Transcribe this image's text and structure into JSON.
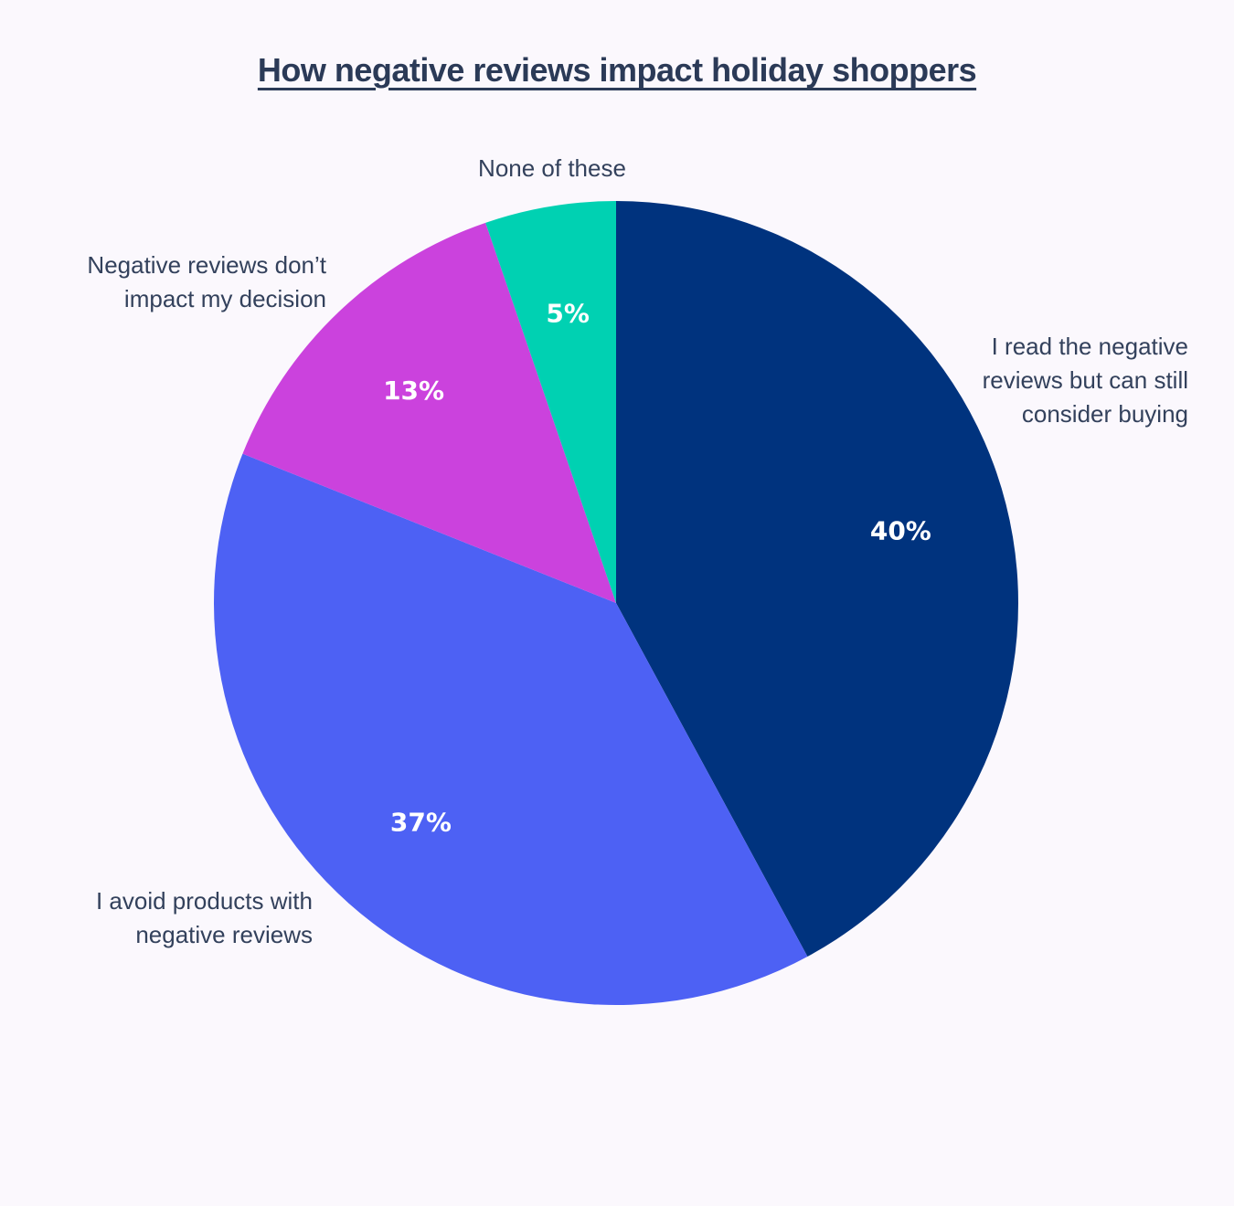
{
  "chart_data": {
    "type": "pie",
    "title": "How negative reviews impact holiday shoppers",
    "slices": [
      {
        "label": "I read the negative reviews but can still consider buying",
        "label_lines": [
          "I read the negative",
          "reviews but can still",
          "consider buying"
        ],
        "value": 40,
        "value_label": "40%",
        "color": "#00337E"
      },
      {
        "label": "I avoid products with negative reviews",
        "label_lines": [
          "I avoid products with",
          "negative reviews"
        ],
        "value": 37,
        "value_label": "37%",
        "color": "#4D61F4"
      },
      {
        "label": "Negative reviews don’t impact my decision",
        "label_lines": [
          "Negative reviews don’t",
          "impact my decision"
        ],
        "value": 13,
        "value_label": "13%",
        "color": "#CB42DD"
      },
      {
        "label": "None of these",
        "label_lines": [
          "None of these"
        ],
        "value": 5,
        "value_label": "5%",
        "color": "#00D1B2"
      }
    ],
    "legend": "none"
  }
}
